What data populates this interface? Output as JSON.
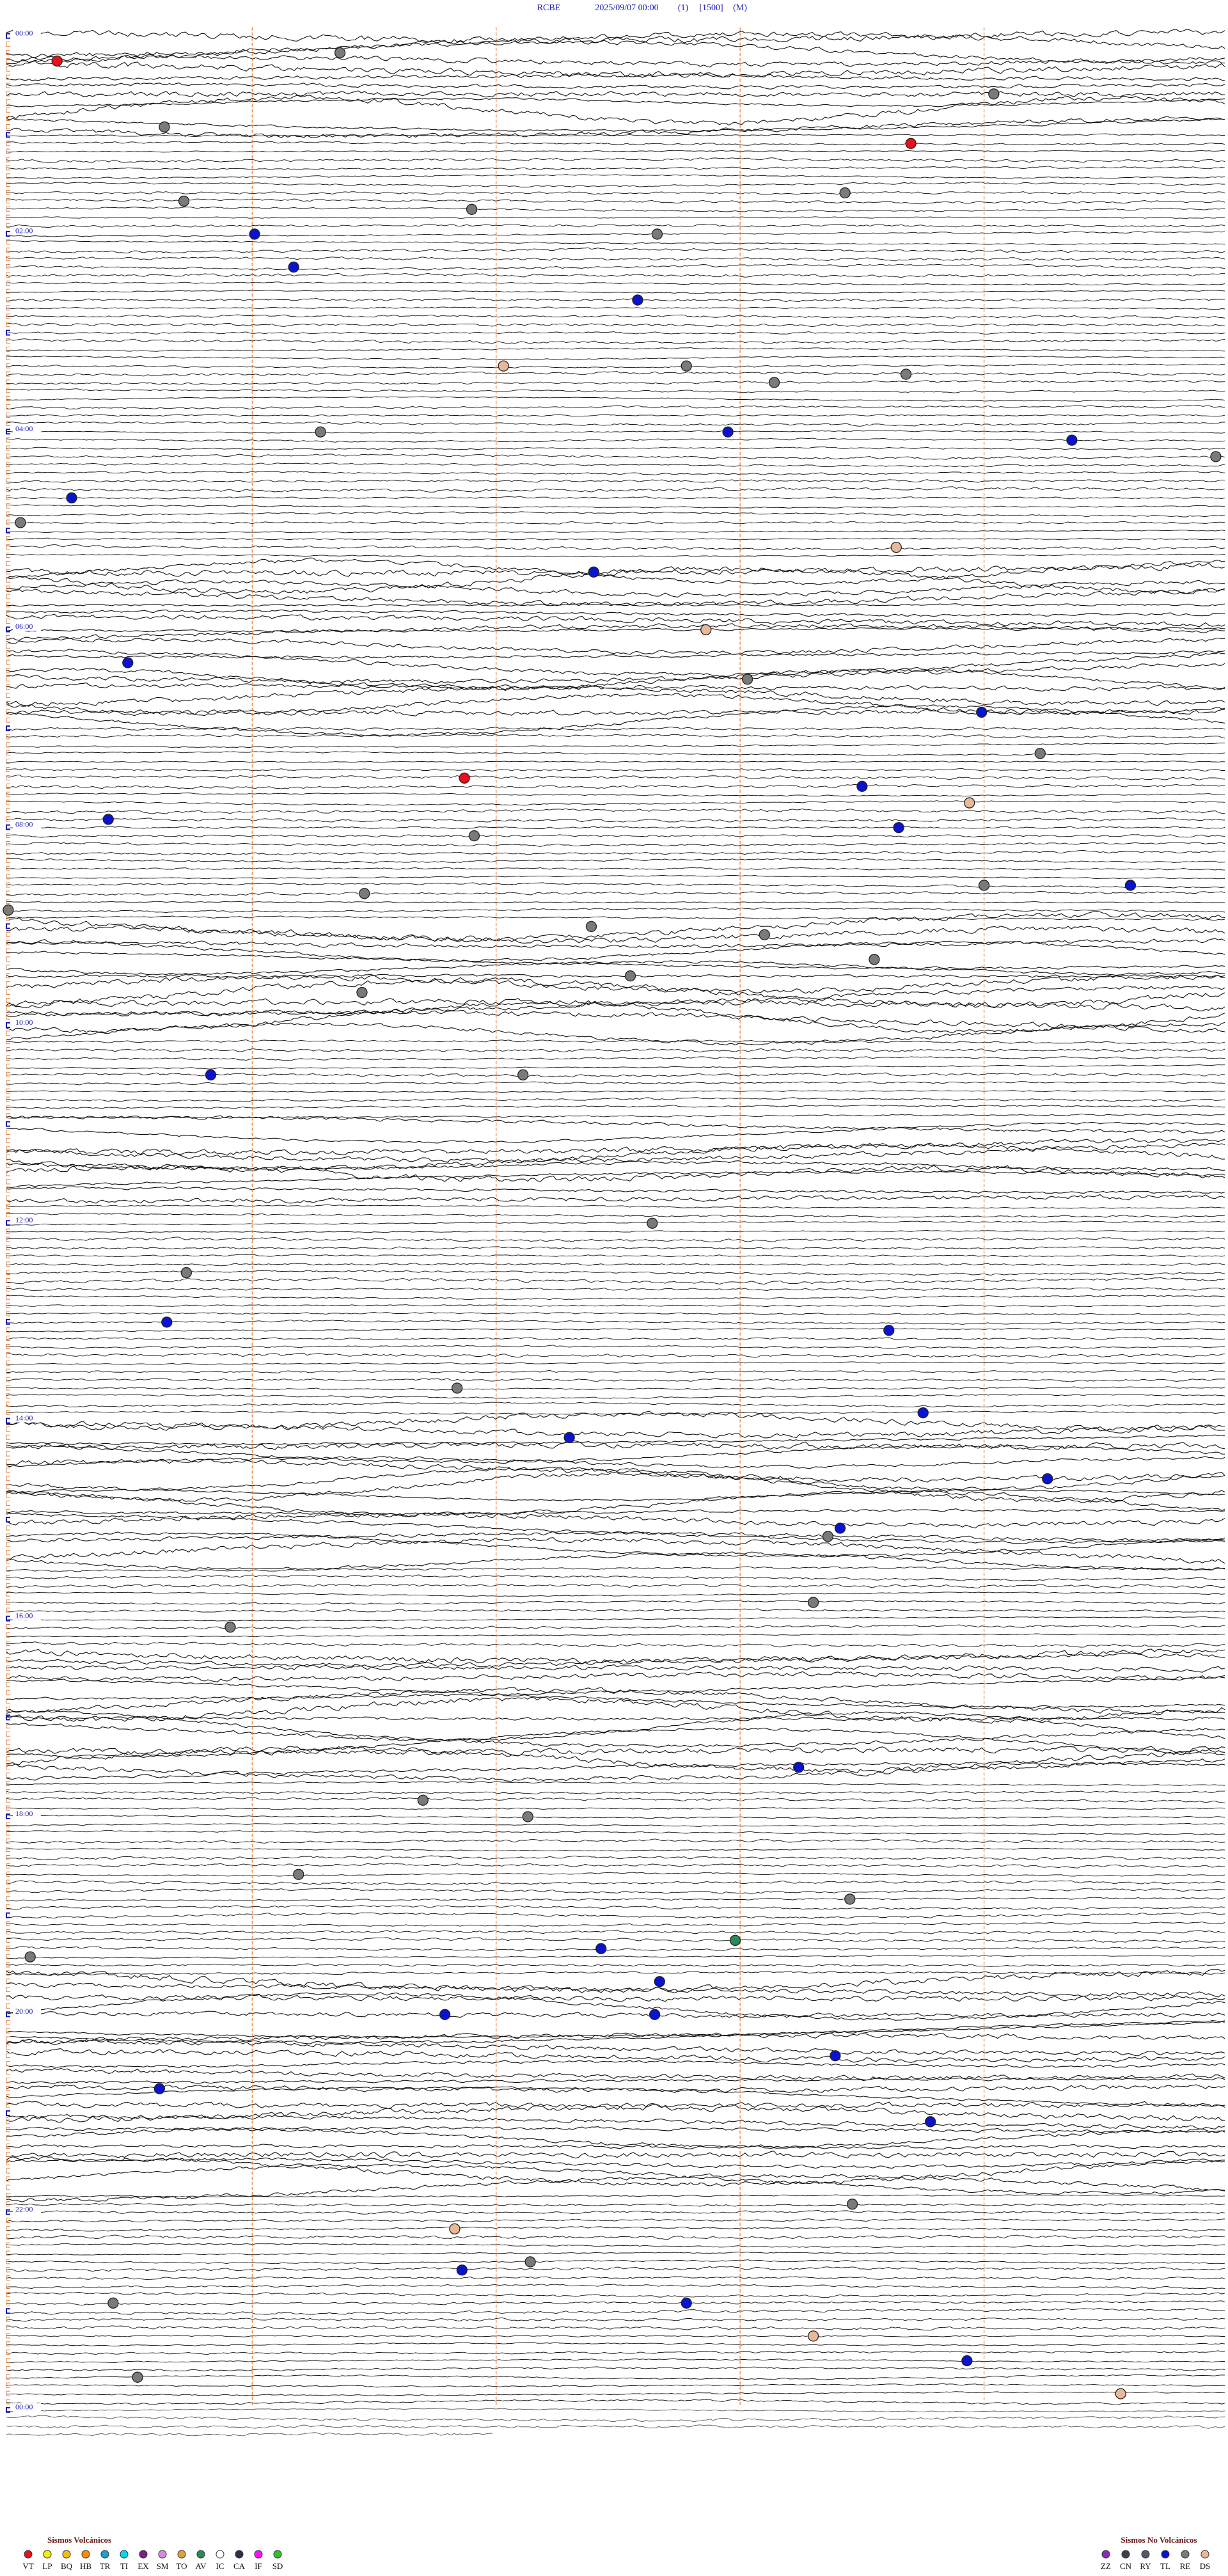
{
  "header": {
    "station": "RCBE",
    "datetime": "2025/09/07 00:00",
    "channel": "(1)",
    "scale": "[1500]",
    "mode": "(M)"
  },
  "hour_labels": [
    "00:00",
    "02:00",
    "04:00",
    "06:00",
    "08:00",
    "10:00",
    "12:00",
    "14:00",
    "16:00",
    "18:00",
    "20:00",
    "22:00",
    "00:00"
  ],
  "xlim": [
    0,
    5
  ],
  "xticks": [
    1,
    2,
    3,
    4
  ],
  "legend": {
    "volcanic": {
      "title": "Sismos Volcánicos",
      "items": [
        {
          "code": "VT",
          "color": "#e8101a",
          "events": [
            {
              "row": 3,
              "minute": 0.2
            },
            {
              "row": 13,
              "minute": 3.7
            },
            {
              "row": 90,
              "minute": 1.87
            }
          ]
        },
        {
          "code": "LP",
          "color": "#f5f000",
          "events": []
        },
        {
          "code": "BQ",
          "color": "#f0c000",
          "events": []
        },
        {
          "code": "HB",
          "color": "#ff8c00",
          "events": []
        },
        {
          "code": "TR",
          "color": "#1ea0d0",
          "events": []
        },
        {
          "code": "TI",
          "color": "#00d8f0",
          "events": []
        },
        {
          "code": "EX",
          "color": "#7a1f86",
          "events": []
        },
        {
          "code": "SM",
          "color": "#d090d8",
          "events": []
        },
        {
          "code": "TO",
          "color": "#e0a040",
          "events": []
        },
        {
          "code": "AV",
          "color": "#2a8a5a",
          "events": [
            {
              "row": 231,
              "minute": 2.98
            }
          ]
        },
        {
          "code": "IC",
          "color": "#ffffff",
          "events": []
        },
        {
          "code": "CA",
          "color": "#3a2a4a",
          "events": []
        },
        {
          "code": "IF",
          "color": "#ff10ff",
          "events": []
        },
        {
          "code": "SD",
          "color": "#30c030",
          "events": []
        }
      ]
    },
    "non_volcanic": {
      "title": "Sismos No Volcánicos",
      "items": [
        {
          "code": "ZZ",
          "color": "#8a2ac0",
          "events": []
        },
        {
          "code": "CN",
          "color": "#404050",
          "events": []
        },
        {
          "code": "RY",
          "color": "#505a6a",
          "events": []
        },
        {
          "code": "TL",
          "color": "#0a14d0",
          "events": [
            {
              "row": 24,
              "minute": 1.01
            },
            {
              "row": 28,
              "minute": 1.17
            },
            {
              "row": 32,
              "minute": 2.58
            },
            {
              "row": 48,
              "minute": 2.95
            },
            {
              "row": 49,
              "minute": 4.36
            },
            {
              "row": 56,
              "minute": 0.26
            },
            {
              "row": 65,
              "minute": 2.4
            },
            {
              "row": 76,
              "minute": 0.49
            },
            {
              "row": 82,
              "minute": 3.99
            },
            {
              "row": 91,
              "minute": 3.5
            },
            {
              "row": 95,
              "minute": 0.41
            },
            {
              "row": 96,
              "minute": 3.65
            },
            {
              "row": 103,
              "minute": 4.6
            },
            {
              "row": 126,
              "minute": 0.83
            },
            {
              "row": 156,
              "minute": 0.65
            },
            {
              "row": 157,
              "minute": 3.61
            },
            {
              "row": 167,
              "minute": 3.75
            },
            {
              "row": 170,
              "minute": 2.3
            },
            {
              "row": 175,
              "minute": 4.26
            },
            {
              "row": 181,
              "minute": 3.41
            },
            {
              "row": 210,
              "minute": 3.24
            },
            {
              "row": 232,
              "minute": 2.43
            },
            {
              "row": 236,
              "minute": 2.67
            },
            {
              "row": 240,
              "minute": 1.79
            },
            {
              "row": 240,
              "minute": 2.65
            },
            {
              "row": 245,
              "minute": 3.39
            },
            {
              "row": 249,
              "minute": 0.62
            },
            {
              "row": 253,
              "minute": 3.78
            },
            {
              "row": 271,
              "minute": 1.86
            },
            {
              "row": 275,
              "minute": 2.78
            },
            {
              "row": 282,
              "minute": 3.93
            }
          ]
        },
        {
          "code": "RE",
          "color": "#7a7a7a",
          "events": [
            {
              "row": 2,
              "minute": 1.36
            },
            {
              "row": 7,
              "minute": 4.04
            },
            {
              "row": 11,
              "minute": 0.64
            },
            {
              "row": 19,
              "minute": 3.43
            },
            {
              "row": 20,
              "minute": 0.72
            },
            {
              "row": 21,
              "minute": 1.9
            },
            {
              "row": 24,
              "minute": 2.66
            },
            {
              "row": 40,
              "minute": 2.78
            },
            {
              "row": 41,
              "minute": 3.68
            },
            {
              "row": 42,
              "minute": 3.14
            },
            {
              "row": 48,
              "minute": 1.28
            },
            {
              "row": 51,
              "minute": 4.95
            },
            {
              "row": 59,
              "minute": 0.05
            },
            {
              "row": 78,
              "minute": 3.03
            },
            {
              "row": 87,
              "minute": 4.23
            },
            {
              "row": 97,
              "minute": 1.91
            },
            {
              "row": 103,
              "minute": 4.0
            },
            {
              "row": 104,
              "minute": 1.46
            },
            {
              "row": 106,
              "minute": 0
            },
            {
              "row": 108,
              "minute": 2.39
            },
            {
              "row": 109,
              "minute": 3.1
            },
            {
              "row": 112,
              "minute": 3.55
            },
            {
              "row": 114,
              "minute": 2.55
            },
            {
              "row": 116,
              "minute": 1.45
            },
            {
              "row": 126,
              "minute": 2.11
            },
            {
              "row": 144,
              "minute": 2.64
            },
            {
              "row": 150,
              "minute": 0.73
            },
            {
              "row": 164,
              "minute": 1.84
            },
            {
              "row": 182,
              "minute": 3.36
            },
            {
              "row": 190,
              "minute": 3.3
            },
            {
              "row": 193,
              "minute": 0.91
            },
            {
              "row": 214,
              "minute": 1.7
            },
            {
              "row": 216,
              "minute": 2.13
            },
            {
              "row": 223,
              "minute": 1.19
            },
            {
              "row": 226,
              "minute": 3.45
            },
            {
              "row": 233,
              "minute": 0.09
            },
            {
              "row": 263,
              "minute": 3.46
            },
            {
              "row": 270,
              "minute": 2.14
            },
            {
              "row": 275,
              "minute": 0.43
            },
            {
              "row": 284,
              "minute": 0.53
            }
          ]
        },
        {
          "code": "DS",
          "color": "#e8b898",
          "events": [
            {
              "row": 40,
              "minute": 2.03
            },
            {
              "row": 62,
              "minute": 3.64
            },
            {
              "row": 72,
              "minute": 2.86
            },
            {
              "row": 93,
              "minute": 3.94
            },
            {
              "row": 266,
              "minute": 1.83
            },
            {
              "row": 279,
              "minute": 3.3
            },
            {
              "row": 286,
              "minute": 4.56
            }
          ]
        }
      ]
    }
  }
}
